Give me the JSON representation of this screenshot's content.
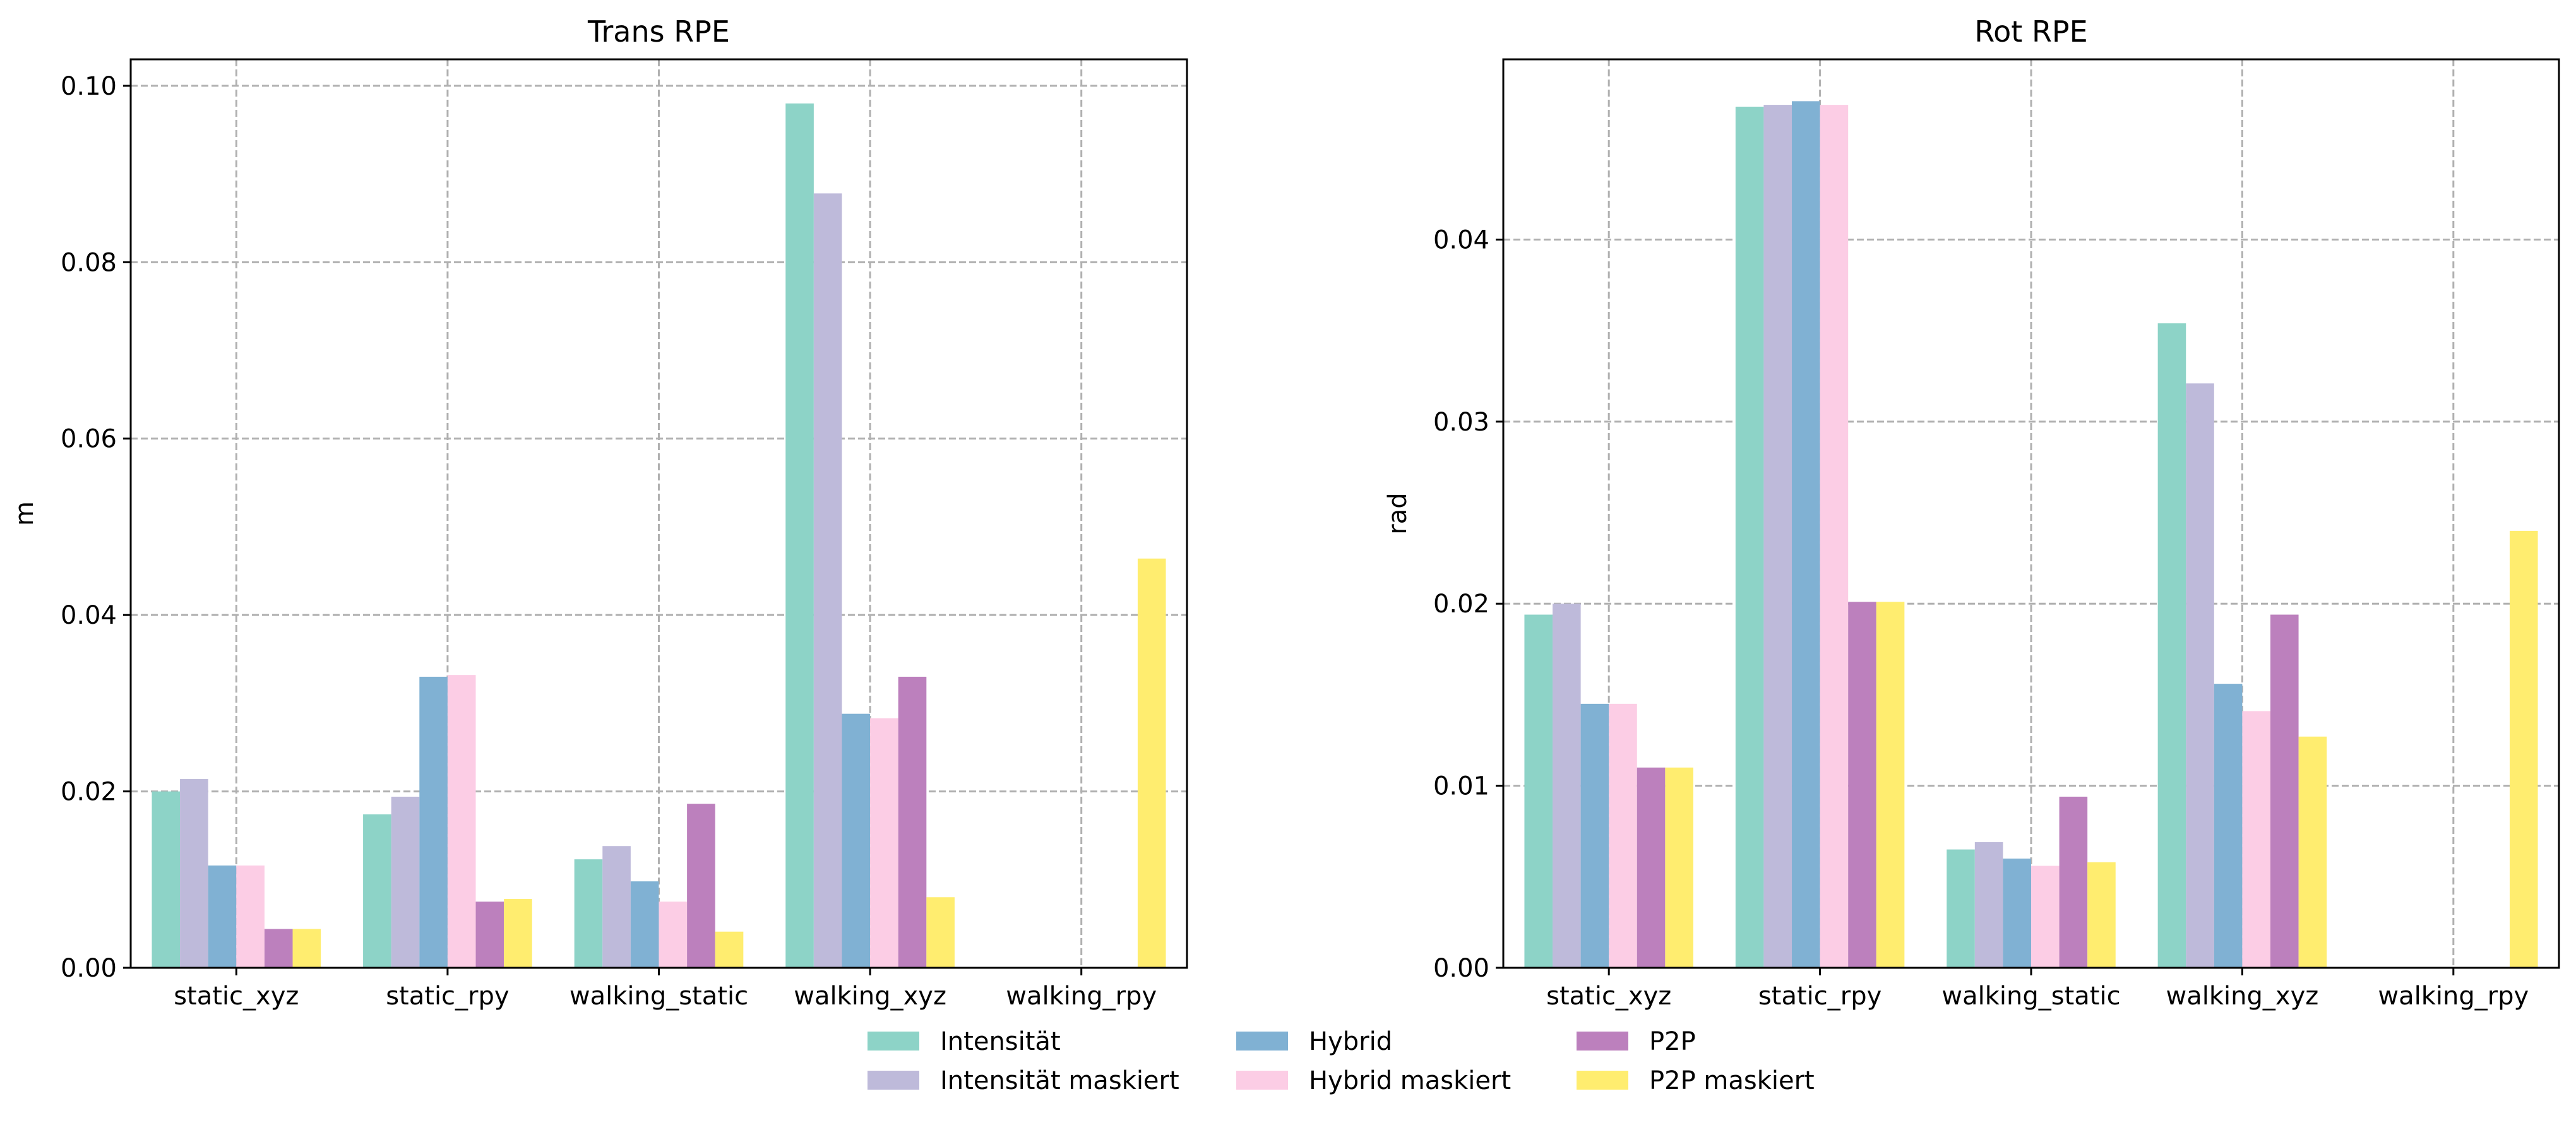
{
  "chart_data": [
    {
      "type": "bar",
      "title": "Trans RPE",
      "xlabel": "",
      "ylabel": "m",
      "ylim": [
        0,
        0.103
      ],
      "yticks": [
        "0.00",
        "0.02",
        "0.04",
        "0.06",
        "0.08",
        "0.10"
      ],
      "grid": true,
      "categories": [
        "static_xyz",
        "static_rpy",
        "walking_static",
        "walking_xyz",
        "walking_rpy"
      ],
      "series": [
        {
          "name": "Intensität",
          "values": [
            0.02,
            0.0174,
            0.0123,
            0.098,
            0
          ]
        },
        {
          "name": "Intensität maskiert",
          "values": [
            0.0214,
            0.0194,
            0.0138,
            0.0878,
            0
          ]
        },
        {
          "name": "Hybrid",
          "values": [
            0.0116,
            0.033,
            0.0098,
            0.0288,
            0
          ]
        },
        {
          "name": "Hybrid maskiert",
          "values": [
            0.0116,
            0.0332,
            0.0075,
            0.0283,
            0
          ]
        },
        {
          "name": "P2P",
          "values": [
            0.0044,
            0.0075,
            0.0186,
            0.033,
            0
          ]
        },
        {
          "name": "P2P maskiert",
          "values": [
            0.0044,
            0.0078,
            0.0041,
            0.008,
            0.0464
          ]
        }
      ]
    },
    {
      "type": "bar",
      "title": "Rot RPE",
      "xlabel": "",
      "ylabel": "rad",
      "ylim": [
        0,
        0.0499
      ],
      "yticks": [
        "0.00",
        "0.01",
        "0.02",
        "0.03",
        "0.04"
      ],
      "grid": true,
      "categories": [
        "static_xyz",
        "static_rpy",
        "walking_static",
        "walking_xyz",
        "walking_rpy"
      ],
      "series": [
        {
          "name": "Intensität",
          "values": [
            0.0194,
            0.0473,
            0.0065,
            0.0354,
            0
          ]
        },
        {
          "name": "Intensität maskiert",
          "values": [
            0.02,
            0.0474,
            0.0069,
            0.0321,
            0
          ]
        },
        {
          "name": "Hybrid",
          "values": [
            0.0145,
            0.0476,
            0.006,
            0.0156,
            0
          ]
        },
        {
          "name": "Hybrid maskiert",
          "values": [
            0.0145,
            0.0474,
            0.0056,
            0.0141,
            0
          ]
        },
        {
          "name": "P2P",
          "values": [
            0.011,
            0.0201,
            0.0094,
            0.0194,
            0
          ]
        },
        {
          "name": "P2P maskiert",
          "values": [
            0.011,
            0.0201,
            0.0058,
            0.0127,
            0.024
          ]
        }
      ]
    }
  ],
  "legend": {
    "placement": "bottom-center",
    "items": [
      {
        "label": "Intensität",
        "color": "#8dd3c7"
      },
      {
        "label": "Intensität maskiert",
        "color": "#bebada"
      },
      {
        "label": "Hybrid",
        "color": "#80b1d3"
      },
      {
        "label": "Hybrid maskiert",
        "color": "#fccde5"
      },
      {
        "label": "P2P",
        "color": "#bc80bd"
      },
      {
        "label": "P2P maskiert",
        "color": "#ffed6f"
      }
    ]
  }
}
